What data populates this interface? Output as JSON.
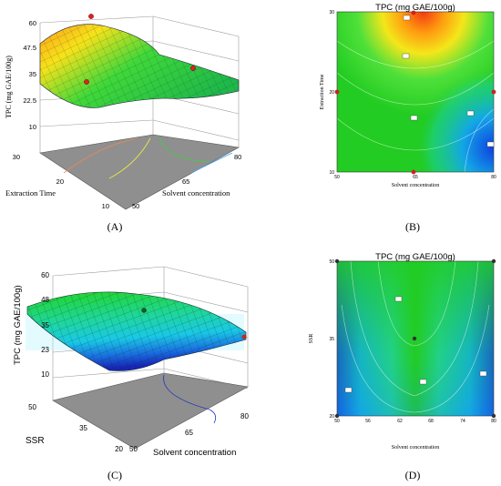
{
  "chart_data": [
    {
      "type": "surface",
      "caption": "(A)",
      "zlabel": "TPC (mg GAE/100g)",
      "xlabel": "Solvent concentration",
      "ylabel": "Extraction Time",
      "z_ticks": [
        "60",
        "47.5",
        "35",
        "22.5",
        "10"
      ],
      "x_ticks": [
        "50",
        "65",
        "80"
      ],
      "y_ticks": [
        "10",
        "20",
        "30"
      ],
      "zlim": [
        10,
        60
      ],
      "xlim": [
        50,
        80
      ],
      "ylim": [
        10,
        30
      ],
      "colors": {
        "high": "#e2402a",
        "mid": "#22c322",
        "low": "#1a8fe0",
        "floor": "#8f8f8f"
      }
    },
    {
      "type": "contour",
      "caption": "(B)",
      "title": "TPC (mg GAE/100g)",
      "xlabel": "Solvent concentration",
      "ylabel": "Extraction Time",
      "x_ticks": [
        "50",
        "65",
        "80"
      ],
      "y_ticks": [
        "10",
        "20",
        "30"
      ],
      "xlim": [
        50,
        80
      ],
      "ylim": [
        10,
        30
      ]
    },
    {
      "type": "surface",
      "caption": "(C)",
      "zlabel": "TPC (mg GAE/100g)",
      "xlabel": "Solvent concentration",
      "ylabel": "SSR",
      "z_ticks": [
        "60",
        "48",
        "35",
        "23",
        "10"
      ],
      "x_ticks": [
        "50",
        "65",
        "80"
      ],
      "y_ticks": [
        "20",
        "35",
        "50"
      ],
      "zlim": [
        10,
        60
      ],
      "xlim": [
        50,
        80
      ],
      "ylim": [
        20,
        50
      ],
      "colors": {
        "high": "#22c322",
        "mid": "#1fd0d0",
        "low": "#1530c8",
        "floor": "#8f8f8f"
      }
    },
    {
      "type": "contour",
      "caption": "(D)",
      "title": "TPC (mg GAE/100g)",
      "xlabel": "Solvent concentration",
      "ylabel": "SSR",
      "x_ticks": [
        "50",
        "56",
        "62",
        "68",
        "74",
        "80"
      ],
      "y_ticks": [
        "20",
        "35",
        "50"
      ],
      "xlim": [
        50,
        80
      ],
      "ylim": [
        20,
        50
      ]
    }
  ]
}
